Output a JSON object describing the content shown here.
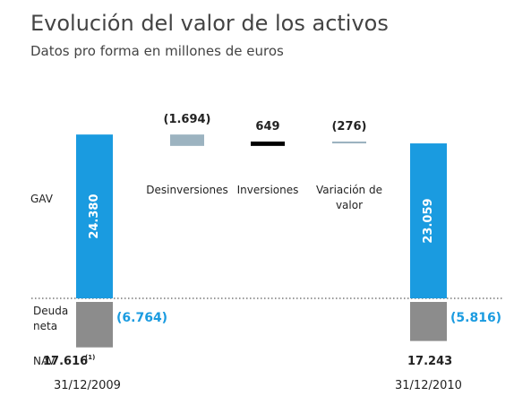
{
  "chart_data": {
    "type": "waterfall",
    "title": "Evolución del valor de los activos",
    "subtitle": "Datos pro forma en millones de euros",
    "row_labels": {
      "gav": "GAV",
      "debt": "Deuda neta",
      "nav": "NAV"
    },
    "dates": [
      "31/12/2009",
      "31/12/2010"
    ],
    "gav": [
      24380,
      23059
    ],
    "gav_labels": [
      "24.380",
      "23.059"
    ],
    "gav_color": "#1a9be0",
    "debt": [
      -6764,
      -5816
    ],
    "debt_labels": [
      "(6.764)",
      "(5.816)"
    ],
    "debt_color": "#8c8c8c",
    "debt_label_color": "#1a9be0",
    "nav": [
      17616,
      17243
    ],
    "nav_labels": [
      "17.616",
      "17.243"
    ],
    "nav_note": "(1)",
    "steps": {
      "categories": [
        "Desinversiones",
        "Inversiones",
        "Variación de valor"
      ],
      "values": [
        -1694,
        649,
        -276
      ],
      "value_labels": [
        "(1.694)",
        "649",
        "(276)"
      ],
      "colors": [
        "#9cb3c0",
        "#000000",
        "#9cb3c0"
      ]
    }
  }
}
